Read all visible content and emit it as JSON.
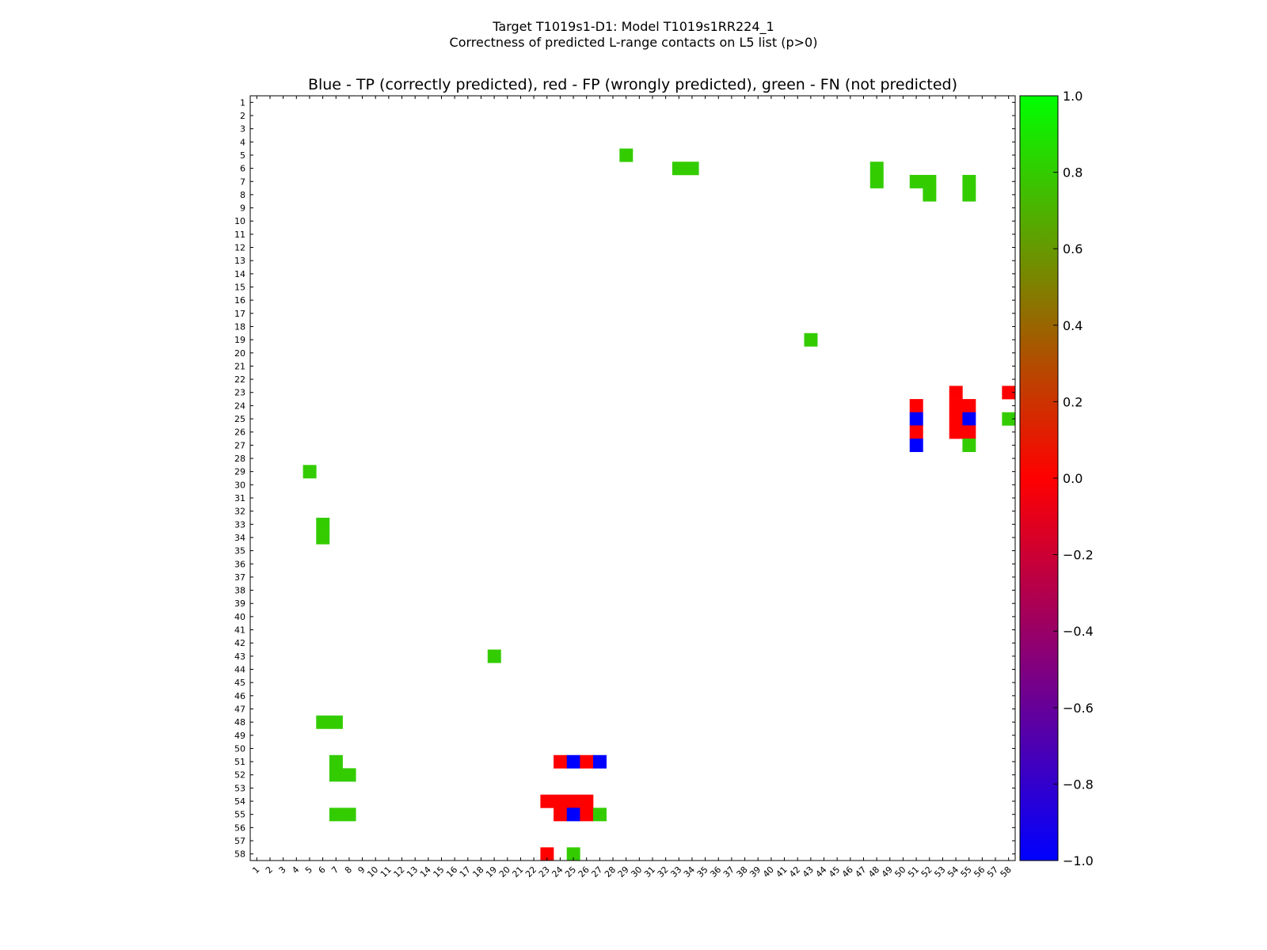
{
  "chart_data": {
    "type": "heatmap",
    "suptitle": [
      "Target T1019s1-D1: Model T1019s1RR224_1",
      "Correctness of predicted L-range contacts on L5 list (p>0)"
    ],
    "title": "Blue - TP (correctly predicted), red - FP (wrongly predicted), green - FN (not predicted)",
    "n": 58,
    "x_ticks": [
      1,
      2,
      3,
      4,
      5,
      6,
      7,
      8,
      9,
      10,
      11,
      12,
      13,
      14,
      15,
      16,
      17,
      18,
      19,
      20,
      21,
      22,
      23,
      24,
      25,
      26,
      27,
      28,
      29,
      30,
      31,
      32,
      33,
      34,
      35,
      36,
      37,
      38,
      39,
      40,
      41,
      42,
      43,
      44,
      45,
      46,
      47,
      48,
      49,
      50,
      51,
      52,
      53,
      54,
      55,
      56,
      57,
      58
    ],
    "y_ticks": [
      1,
      2,
      3,
      4,
      5,
      6,
      7,
      8,
      9,
      10,
      11,
      12,
      13,
      14,
      15,
      16,
      17,
      18,
      19,
      20,
      21,
      22,
      23,
      24,
      25,
      26,
      27,
      28,
      29,
      30,
      31,
      32,
      33,
      34,
      35,
      36,
      37,
      38,
      39,
      40,
      41,
      42,
      43,
      44,
      45,
      46,
      47,
      48,
      49,
      50,
      51,
      52,
      53,
      54,
      55,
      56,
      57,
      58
    ],
    "colors": {
      "TP": "#0000ff",
      "FP": "#ff0000",
      "FN": "#33cc00"
    },
    "cells": [
      {
        "x": 29,
        "y": 5,
        "v": "FN"
      },
      {
        "x": 33,
        "y": 6,
        "v": "FN"
      },
      {
        "x": 34,
        "y": 6,
        "v": "FN"
      },
      {
        "x": 48,
        "y": 6,
        "v": "FN"
      },
      {
        "x": 48,
        "y": 7,
        "v": "FN"
      },
      {
        "x": 51,
        "y": 7,
        "v": "FN"
      },
      {
        "x": 52,
        "y": 7,
        "v": "FN"
      },
      {
        "x": 52,
        "y": 8,
        "v": "FN"
      },
      {
        "x": 55,
        "y": 7,
        "v": "FN"
      },
      {
        "x": 55,
        "y": 8,
        "v": "FN"
      },
      {
        "x": 43,
        "y": 19,
        "v": "FN"
      },
      {
        "x": 54,
        "y": 23,
        "v": "FP"
      },
      {
        "x": 58,
        "y": 23,
        "v": "FP"
      },
      {
        "x": 51,
        "y": 24,
        "v": "FP"
      },
      {
        "x": 54,
        "y": 24,
        "v": "FP"
      },
      {
        "x": 55,
        "y": 24,
        "v": "FP"
      },
      {
        "x": 51,
        "y": 25,
        "v": "TP"
      },
      {
        "x": 54,
        "y": 25,
        "v": "FP"
      },
      {
        "x": 55,
        "y": 25,
        "v": "TP"
      },
      {
        "x": 58,
        "y": 25,
        "v": "FN"
      },
      {
        "x": 51,
        "y": 26,
        "v": "FP"
      },
      {
        "x": 54,
        "y": 26,
        "v": "FP"
      },
      {
        "x": 55,
        "y": 26,
        "v": "FP"
      },
      {
        "x": 51,
        "y": 27,
        "v": "TP"
      },
      {
        "x": 55,
        "y": 27,
        "v": "FN"
      },
      {
        "x": 5,
        "y": 29,
        "v": "FN"
      },
      {
        "x": 6,
        "y": 33,
        "v": "FN"
      },
      {
        "x": 6,
        "y": 34,
        "v": "FN"
      },
      {
        "x": 19,
        "y": 43,
        "v": "FN"
      },
      {
        "x": 6,
        "y": 48,
        "v": "FN"
      },
      {
        "x": 7,
        "y": 48,
        "v": "FN"
      },
      {
        "x": 7,
        "y": 51,
        "v": "FN"
      },
      {
        "x": 24,
        "y": 51,
        "v": "FP"
      },
      {
        "x": 25,
        "y": 51,
        "v": "TP"
      },
      {
        "x": 26,
        "y": 51,
        "v": "FP"
      },
      {
        "x": 27,
        "y": 51,
        "v": "TP"
      },
      {
        "x": 7,
        "y": 52,
        "v": "FN"
      },
      {
        "x": 8,
        "y": 52,
        "v": "FN"
      },
      {
        "x": 23,
        "y": 54,
        "v": "FP"
      },
      {
        "x": 24,
        "y": 54,
        "v": "FP"
      },
      {
        "x": 25,
        "y": 54,
        "v": "FP"
      },
      {
        "x": 26,
        "y": 54,
        "v": "FP"
      },
      {
        "x": 7,
        "y": 55,
        "v": "FN"
      },
      {
        "x": 8,
        "y": 55,
        "v": "FN"
      },
      {
        "x": 24,
        "y": 55,
        "v": "FP"
      },
      {
        "x": 25,
        "y": 55,
        "v": "TP"
      },
      {
        "x": 26,
        "y": 55,
        "v": "FP"
      },
      {
        "x": 27,
        "y": 55,
        "v": "FN"
      },
      {
        "x": 23,
        "y": 58,
        "v": "FP"
      },
      {
        "x": 25,
        "y": 58,
        "v": "FN"
      }
    ],
    "colorbar": {
      "range": [
        -1.0,
        1.0
      ],
      "tick_values": [
        1.0,
        0.8,
        0.6,
        0.4,
        0.2,
        0.0,
        -0.2,
        -0.4,
        -0.6,
        -0.8,
        -1.0
      ],
      "tick_labels": [
        "1.0",
        "0.8",
        "0.6",
        "0.4",
        "0.2",
        "0.0",
        "−0.2",
        "−0.4",
        "−0.6",
        "−0.8",
        "−1.0"
      ],
      "color_stops": [
        {
          "value": -1.0,
          "color": "#0000ff"
        },
        {
          "value": 0.0,
          "color": "#ff0000"
        },
        {
          "value": 1.0,
          "color": "#00ff00"
        }
      ]
    }
  }
}
